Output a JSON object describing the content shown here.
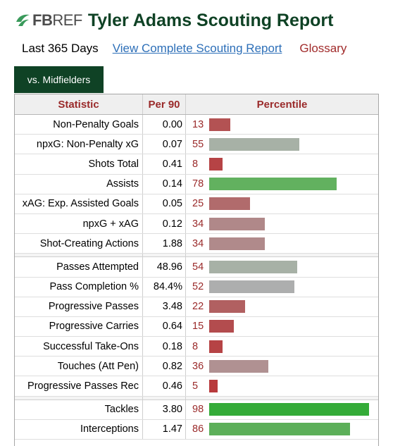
{
  "header": {
    "logo_fb": "FB",
    "logo_ref": "REF",
    "title": "Tyler Adams Scouting Report"
  },
  "subnav": {
    "period": "Last 365 Days",
    "complete_link": "View Complete Scouting Report",
    "glossary": "Glossary"
  },
  "tab": {
    "label": "vs. Midfielders"
  },
  "colors": {
    "brand_dark_green": "#0f4225",
    "header_red": "#9a2a2a",
    "link_blue": "#2d6fb8",
    "bar_low": "#b35253",
    "bar_mid": "#a8aea6",
    "bar_high": "#62b15f",
    "bar_elite": "#34ab38"
  },
  "table": {
    "headers": [
      "Statistic",
      "Per 90",
      "Percentile"
    ],
    "groups": [
      [
        {
          "stat": "Non-Penalty Goals",
          "per90": "0.00",
          "pct": 13,
          "color": "#b35253"
        },
        {
          "stat": "npxG: Non-Penalty xG",
          "per90": "0.07",
          "pct": 55,
          "color": "#a7b1a6"
        },
        {
          "stat": "Shots Total",
          "per90": "0.41",
          "pct": 8,
          "color": "#b64345"
        },
        {
          "stat": "Assists",
          "per90": "0.14",
          "pct": 78,
          "color": "#62b15f"
        },
        {
          "stat": "xAG: Exp. Assisted Goals",
          "per90": "0.05",
          "pct": 25,
          "color": "#b16b6c"
        },
        {
          "stat": "npxG + xAG",
          "per90": "0.12",
          "pct": 34,
          "color": "#b08889"
        },
        {
          "stat": "Shot-Creating Actions",
          "per90": "1.88",
          "pct": 34,
          "color": "#b08a8b"
        }
      ],
      [
        {
          "stat": "Passes Attempted",
          "per90": "48.96",
          "pct": 54,
          "color": "#a7b1a6"
        },
        {
          "stat": "Pass Completion %",
          "per90": "84.4%",
          "pct": 52,
          "color": "#adaeae"
        },
        {
          "stat": "Progressive Passes",
          "per90": "3.48",
          "pct": 22,
          "color": "#b16061"
        },
        {
          "stat": "Progressive Carries",
          "per90": "0.64",
          "pct": 15,
          "color": "#b34c4e"
        },
        {
          "stat": "Successful Take-Ons",
          "per90": "0.18",
          "pct": 8,
          "color": "#b64345"
        },
        {
          "stat": "Touches (Att Pen)",
          "per90": "0.82",
          "pct": 36,
          "color": "#b09192"
        },
        {
          "stat": "Progressive Passes Rec",
          "per90": "0.46",
          "pct": 5,
          "color": "#b83a3c"
        }
      ],
      [
        {
          "stat": "Tackles",
          "per90": "3.80",
          "pct": 98,
          "color": "#34ab38"
        },
        {
          "stat": "Interceptions",
          "per90": "1.47",
          "pct": 86,
          "color": "#5caf59"
        }
      ]
    ]
  }
}
